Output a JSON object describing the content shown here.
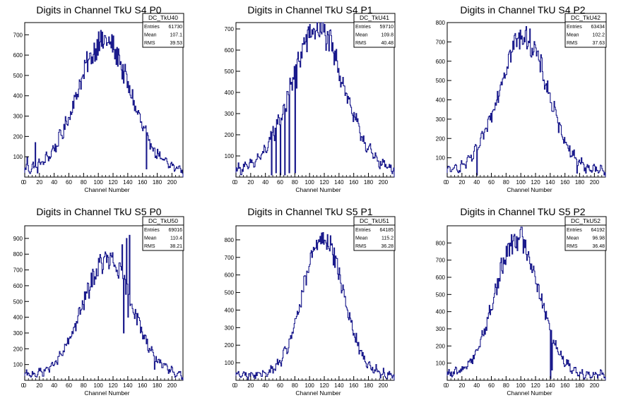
{
  "colors": {
    "histogram": "#1a1a8c",
    "axis": "#000000",
    "background": "#ffffff"
  },
  "chart_data": [
    {
      "type": "histogram",
      "title": "Digits in Channel TkU S4 P0",
      "xlabel": "Channel Number",
      "ylabel": "",
      "xlim": [
        0,
        215
      ],
      "ylim": [
        0,
        760
      ],
      "xticks": [
        0,
        20,
        40,
        60,
        80,
        100,
        120,
        140,
        160,
        180,
        200
      ],
      "yticks": [
        100,
        200,
        300,
        400,
        500,
        600,
        700
      ],
      "stats": {
        "name": "DC_TkU40",
        "entries": "61730",
        "mean": "107.1",
        "rms": "39.53"
      },
      "peak": {
        "center": 107,
        "height": 640,
        "sigma": 36
      },
      "spikes": [
        [
          3,
          100
        ],
        [
          9,
          40
        ],
        [
          14,
          170
        ],
        [
          17,
          20
        ],
        [
          92,
          560
        ],
        [
          100,
          715
        ],
        [
          114,
          690
        ],
        [
          128,
          600
        ],
        [
          165,
          40
        ],
        [
          168,
          180
        ]
      ]
    },
    {
      "type": "histogram",
      "title": "Digits in Channel TkU S4 P1",
      "xlabel": "Channel Number",
      "ylabel": "",
      "xlim": [
        0,
        215
      ],
      "ylim": [
        0,
        730
      ],
      "xticks": [
        0,
        20,
        40,
        60,
        80,
        100,
        120,
        140,
        160,
        180,
        200
      ],
      "yticks": [
        100,
        200,
        300,
        400,
        500,
        600,
        700
      ],
      "stats": {
        "name": "DC_TkU41",
        "entries": "59710",
        "mean": "109.8",
        "rms": "40.48"
      },
      "peak": {
        "center": 110,
        "height": 670,
        "sigma": 36
      },
      "spikes": [
        [
          48,
          10
        ],
        [
          50,
          240
        ],
        [
          54,
          20
        ],
        [
          56,
          250
        ],
        [
          60,
          10
        ],
        [
          62,
          270
        ],
        [
          66,
          10
        ],
        [
          68,
          310
        ],
        [
          72,
          20
        ],
        [
          76,
          410
        ],
        [
          80,
          20
        ],
        [
          82,
          420
        ],
        [
          108,
          690
        ],
        [
          112,
          670
        ]
      ]
    },
    {
      "type": "histogram",
      "title": "Digits in Channel TkU S4 P2",
      "xlabel": "Channel Number",
      "ylabel": "",
      "xlim": [
        0,
        215
      ],
      "ylim": [
        0,
        800
      ],
      "xticks": [
        0,
        20,
        40,
        60,
        80,
        100,
        120,
        140,
        160,
        180,
        200
      ],
      "yticks": [
        100,
        200,
        300,
        400,
        500,
        600,
        700,
        800
      ],
      "stats": {
        "name": "DC_TkU42",
        "entries": "63434",
        "mean": "102.2",
        "rms": "37.63"
      },
      "peak": {
        "center": 103,
        "height": 700,
        "sigma": 33
      },
      "spikes": [
        [
          40,
          10
        ],
        [
          106,
          760
        ],
        [
          96,
          720
        ],
        [
          176,
          20
        ],
        [
          182,
          100
        ],
        [
          188,
          20
        ]
      ]
    },
    {
      "type": "histogram",
      "title": "Digits in Channel TkU S5 P0",
      "xlabel": "Channel Number",
      "ylabel": "",
      "xlim": [
        0,
        215
      ],
      "ylim": [
        0,
        980
      ],
      "xticks": [
        0,
        20,
        40,
        60,
        80,
        100,
        120,
        140,
        160,
        180,
        200
      ],
      "yticks": [
        100,
        200,
        300,
        400,
        500,
        600,
        700,
        800,
        900
      ],
      "stats": {
        "name": "DC_TkU50",
        "entries": "69016",
        "mean": "110.4",
        "rms": "38.21"
      },
      "peak": {
        "center": 112,
        "height": 730,
        "sigma": 34
      },
      "spikes": [
        [
          132,
          860
        ],
        [
          134,
          300
        ],
        [
          138,
          900
        ],
        [
          140,
          400
        ],
        [
          142,
          920
        ],
        [
          150,
          450
        ],
        [
          176,
          70
        ],
        [
          186,
          80
        ],
        [
          196,
          70
        ]
      ]
    },
    {
      "type": "histogram",
      "title": "Digits in Channel TkU S5 P1",
      "xlabel": "Channel Number",
      "ylabel": "",
      "xlim": [
        0,
        215
      ],
      "ylim": [
        0,
        880
      ],
      "xticks": [
        0,
        20,
        40,
        60,
        80,
        100,
        120,
        140,
        160,
        180,
        200
      ],
      "yticks": [
        100,
        200,
        300,
        400,
        500,
        600,
        700,
        800
      ],
      "stats": {
        "name": "DC_TkU51",
        "entries": "64185",
        "mean": "115.2",
        "rms": "36.28"
      },
      "peak": {
        "center": 118,
        "height": 790,
        "sigma": 27
      },
      "spikes": [
        [
          114,
          820
        ],
        [
          124,
          830
        ],
        [
          190,
          90
        ]
      ]
    },
    {
      "type": "histogram",
      "title": "Digits in Channel TkU S5 P2",
      "xlabel": "Channel Number",
      "ylabel": "",
      "xlim": [
        0,
        215
      ],
      "ylim": [
        0,
        900
      ],
      "xticks": [
        0,
        20,
        40,
        60,
        80,
        100,
        120,
        140,
        160,
        180,
        200
      ],
      "yticks": [
        100,
        200,
        300,
        400,
        500,
        600,
        700,
        800
      ],
      "stats": {
        "name": "DC_TkU52",
        "entries": "64192",
        "mean": "96.98",
        "rms": "36.48"
      },
      "peak": {
        "center": 95,
        "height": 800,
        "sigma": 30
      },
      "spikes": [
        [
          90,
          840
        ],
        [
          96,
          830
        ],
        [
          140,
          10
        ],
        [
          142,
          60
        ]
      ]
    }
  ]
}
